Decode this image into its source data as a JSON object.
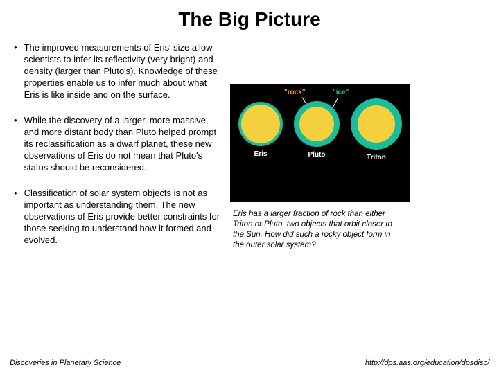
{
  "title": "The Big Picture",
  "bullets": [
    "The improved measurements of Eris' size allow scientists to infer its reflectivity (very bright) and density (larger than Pluto's). Knowledge of these properties enable us to infer much about what Eris is like inside and on the surface.",
    "While the discovery of a larger, more massive, and more distant body than Pluto helped prompt its reclassification as a dwarf planet, these new observations of Eris do not mean that Pluto's status should be reconsidered.",
    "Classification of solar system objects is not as important as understanding them. The new observations of Eris provide better constraints for those seeking to understand how it formed and evolved."
  ],
  "diagram": {
    "background": "#000000",
    "rock_color": "#f4d03f",
    "ice_color": "#1abc9c",
    "label_color": "#ffffff",
    "anno_rock": {
      "text": "\"rock\"",
      "color": "#ff8c1a"
    },
    "anno_ice": {
      "text": "\"ice\"",
      "color": "#1abc9c"
    },
    "bodies": [
      {
        "name": "Eris",
        "outer_d": 64,
        "inner_d": 56
      },
      {
        "name": "Pluto",
        "outer_d": 66,
        "inner_d": 50
      },
      {
        "name": "Triton",
        "outer_d": 74,
        "inner_d": 54
      }
    ]
  },
  "caption": "Eris has a larger fraction of rock than either Triton or Pluto, two objects that orbit closer to the Sun. How did such a rocky object form in the outer solar system?",
  "footer_left": "Discoveries in Planetary Science",
  "footer_right": "http://dps.aas.org/education/dpsdisc/"
}
